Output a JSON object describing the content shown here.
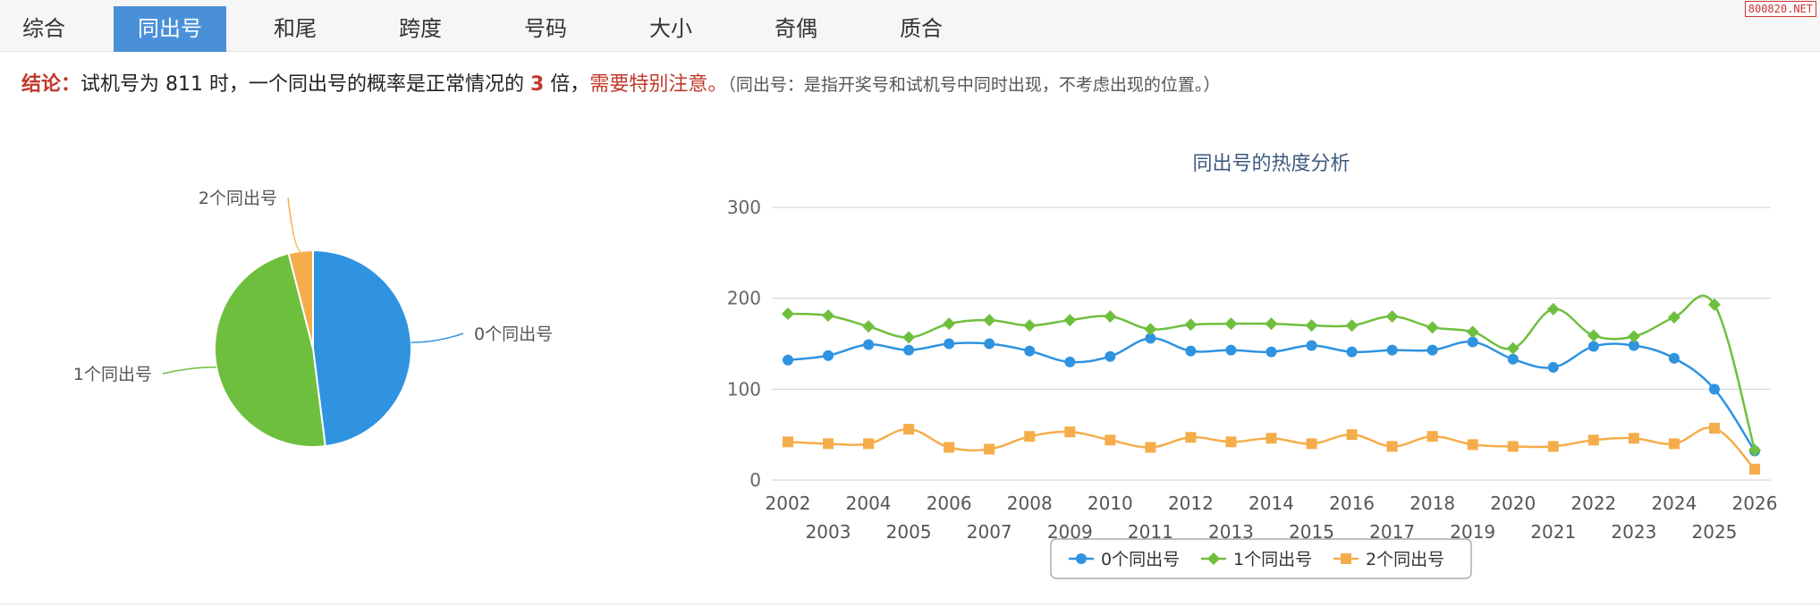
{
  "tabs": [
    "综合",
    "同出号",
    "和尾",
    "跨度",
    "号码",
    "大小",
    "奇偶",
    "质合"
  ],
  "active_tab": 1,
  "watermark": "800820.NET",
  "conclusion": {
    "label": "结论：",
    "part1": "试机号为 811 时，一个同出号的概率是正常情况的 ",
    "times": "3",
    "part2": " 倍，",
    "warning": "需要特别注意。",
    "note": "（同出号：是指开奖号和试机号中同时出现，不考虑出现的位置。）"
  },
  "colors": {
    "s0": "#2f93e0",
    "s1": "#6fbf3f",
    "s2": "#f5ad4b"
  },
  "chart_data": [
    {
      "type": "pie",
      "labels": [
        "0个同出号",
        "1个同出号",
        "2个同出号"
      ],
      "values": [
        48,
        48,
        4
      ]
    },
    {
      "type": "line",
      "title": "同出号的热度分析",
      "ylim": [
        0,
        300
      ],
      "yticks": [
        0,
        100,
        200,
        300
      ],
      "grid": true,
      "legend": "bottom-center",
      "x": [
        "2002",
        "2003",
        "2004",
        "2005",
        "2006",
        "2007",
        "2008",
        "2009",
        "2010",
        "2011",
        "2012",
        "2013",
        "2014",
        "2015",
        "2016",
        "2017",
        "2018",
        "2019",
        "2020",
        "2021",
        "2022",
        "2023",
        "2024",
        "2025",
        "2026"
      ],
      "series": [
        {
          "name": "0个同出号",
          "marker": "circle",
          "values": [
            132,
            137,
            149,
            143,
            150,
            150,
            142,
            130,
            136,
            156,
            142,
            143,
            141,
            148,
            141,
            143,
            143,
            152,
            133,
            124,
            147,
            148,
            134,
            100,
            32
          ]
        },
        {
          "name": "1个同出号",
          "marker": "diamond",
          "values": [
            183,
            181,
            169,
            157,
            172,
            176,
            170,
            176,
            180,
            166,
            171,
            172,
            172,
            170,
            170,
            180,
            168,
            163,
            145,
            188,
            159,
            158,
            179,
            193,
            33
          ]
        },
        {
          "name": "2个同出号",
          "marker": "square",
          "values": [
            42,
            40,
            40,
            56,
            36,
            34,
            48,
            53,
            44,
            36,
            47,
            42,
            46,
            40,
            50,
            37,
            48,
            39,
            37,
            37,
            44,
            46,
            40,
            57,
            12
          ]
        }
      ]
    }
  ]
}
